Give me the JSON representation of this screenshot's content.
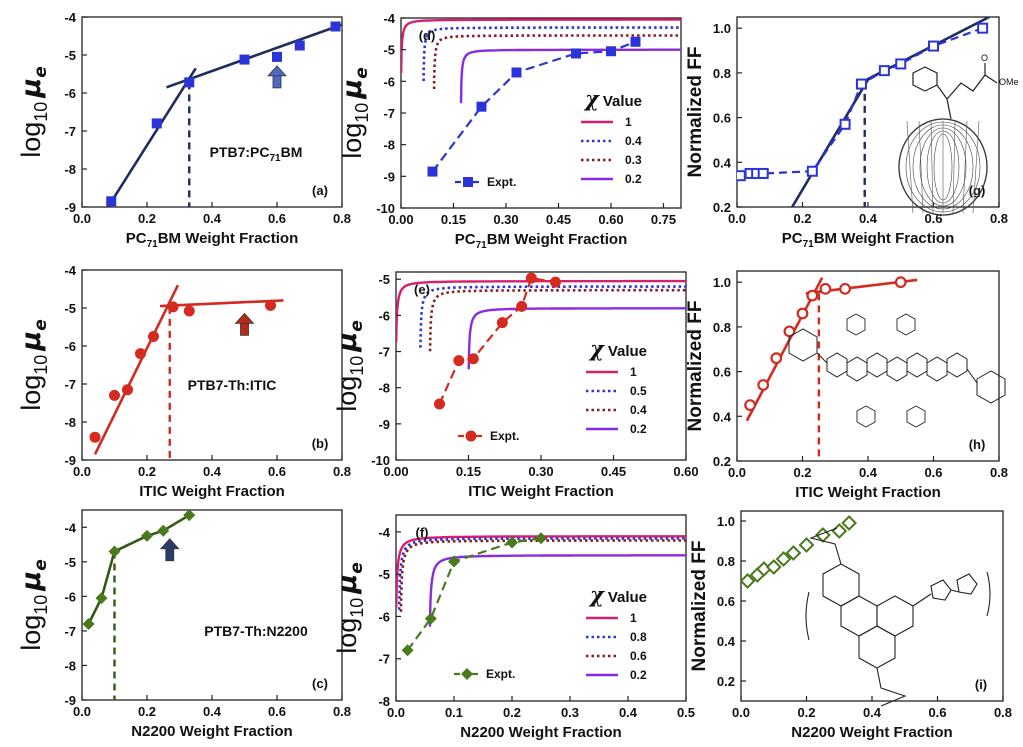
{
  "figure": {
    "ylabel_log": "log10 μe",
    "ylabel_ff": "Normalized FF",
    "xlabel_pcbm": "PC71BM Weight Fraction",
    "xlabel_itic": "ITIC Weight Fraction",
    "xlabel_n2200": "N2200 Weight Fraction",
    "legend_title": "χ Value",
    "legend_expt": "Expt."
  },
  "colors": {
    "navy": "#1f2d5c",
    "blue": "#2a34d8",
    "red": "#d42a20",
    "green": "#4a7a1e",
    "magenta": "#d6206f",
    "maroon": "#8a1c1c",
    "violet": "#8a2be2",
    "arrow_blue": "#4e68c4",
    "arrow_red": "#b52a18",
    "arrow_navy": "#2b3d6a"
  },
  "chart_data": [
    {
      "id": "a",
      "type": "scatter",
      "tag": "(a)",
      "annotation": "PTB7:PC71BM",
      "xlabel": "PC71BM Weight Fraction",
      "ylabel": "log10 μe",
      "xlim": [
        0,
        0.8
      ],
      "ylim": [
        -9,
        -4
      ],
      "xticks": [
        "0.0",
        "0.2",
        "0.4",
        "0.6",
        "0.8"
      ],
      "yticks": [
        "-9",
        "-8",
        "-7",
        "-6",
        "-5",
        "-4"
      ],
      "series": [
        {
          "x": [
            0.09,
            0.23,
            0.33,
            0.5,
            0.6,
            0.67,
            0.78
          ],
          "y": [
            -8.85,
            -6.8,
            -5.72,
            -5.12,
            -5.05,
            -4.75,
            -4.25
          ]
        }
      ],
      "fit_lines": [
        {
          "x": [
            0.08,
            0.35
          ],
          "y": [
            -9.0,
            -5.35
          ]
        },
        {
          "x": [
            0.26,
            0.8
          ],
          "y": [
            -5.85,
            -4.2
          ]
        }
      ],
      "threshold_x": 0.33,
      "arrow_x": 0.6
    },
    {
      "id": "b",
      "type": "scatter",
      "tag": "(b)",
      "annotation": "PTB7-Th:ITIC",
      "xlabel": "ITIC Weight Fraction",
      "ylabel": "log10 μe",
      "xlim": [
        0,
        0.8
      ],
      "ylim": [
        -9,
        -4
      ],
      "xticks": [
        "0.0",
        "0.2",
        "0.4",
        "0.6",
        "0.8"
      ],
      "yticks": [
        "-9",
        "-8",
        "-7",
        "-6",
        "-5",
        "-4"
      ],
      "series": [
        {
          "x": [
            0.04,
            0.1,
            0.14,
            0.18,
            0.22,
            0.28,
            0.33,
            0.58
          ],
          "y": [
            -8.4,
            -7.3,
            -7.15,
            -6.2,
            -5.75,
            -4.97,
            -5.08,
            -4.93
          ]
        }
      ],
      "fit_lines": [
        {
          "x": [
            0.04,
            0.295
          ],
          "y": [
            -8.85,
            -4.4
          ]
        },
        {
          "x": [
            0.24,
            0.62
          ],
          "y": [
            -4.95,
            -4.8
          ]
        }
      ],
      "threshold_x": 0.27,
      "arrow_x": 0.5
    },
    {
      "id": "c",
      "type": "scatter",
      "tag": "(c)",
      "annotation": "PTB7-Th:N2200",
      "xlabel": "N2200 Weight Fraction",
      "ylabel": "log10 μe",
      "xlim": [
        0,
        0.8
      ],
      "ylim": [
        -9,
        -3.5
      ],
      "xticks": [
        "0.0",
        "0.2",
        "0.4",
        "0.6",
        "0.8"
      ],
      "yticks": [
        "-9",
        "-8",
        "-7",
        "-6",
        "-5",
        "-4"
      ],
      "series": [
        {
          "x": [
            0.02,
            0.06,
            0.1,
            0.2,
            0.25,
            0.33
          ],
          "y": [
            -6.8,
            -6.05,
            -4.7,
            -4.25,
            -4.1,
            -3.65
          ]
        }
      ],
      "fit_lines": [],
      "threshold_x": 0.1,
      "arrow_x": 0.27
    },
    {
      "id": "d",
      "type": "line",
      "tag": "(d)",
      "xlabel": "PC71BM Weight Fraction",
      "ylabel": "log10 μe",
      "xlim": [
        0,
        0.8
      ],
      "ylim": [
        -10,
        -4
      ],
      "xticks": [
        "0.00",
        "0.15",
        "0.30",
        "0.45",
        "0.60",
        "0.75"
      ],
      "yticks": [
        "-10",
        "-9",
        "-8",
        "-7",
        "-6",
        "-5",
        "-4"
      ],
      "legend_title": "χ Value",
      "series": [
        {
          "name": "1",
          "x0": 0.0
        },
        {
          "name": "0.4",
          "x0": 0.064
        },
        {
          "name": "0.3",
          "x0": 0.094
        },
        {
          "name": "0.2",
          "x0": 0.171
        }
      ],
      "expt": {
        "name": "Expt.",
        "x": [
          0.09,
          0.23,
          0.33,
          0.5,
          0.6,
          0.67
        ],
        "y": [
          -8.85,
          -6.8,
          -5.72,
          -5.12,
          -5.05,
          -4.75
        ]
      }
    },
    {
      "id": "e",
      "type": "line",
      "tag": "(e)",
      "xlabel": "ITIC Weight Fraction",
      "ylabel": "log10 μe",
      "xlim": [
        0,
        0.6
      ],
      "ylim": [
        -10,
        -4.8
      ],
      "xticks": [
        "0.00",
        "0.15",
        "0.30",
        "0.45",
        "0.60"
      ],
      "yticks": [
        "-10",
        "-9",
        "-8",
        "-7",
        "-6",
        "-5"
      ],
      "legend_title": "χ Value",
      "series": [
        {
          "name": "1",
          "x0": 0.0
        },
        {
          "name": "0.5",
          "x0": 0.05
        },
        {
          "name": "0.4",
          "x0": 0.07
        },
        {
          "name": "0.2",
          "x0": 0.15
        }
      ],
      "expt": {
        "name": "Expt.",
        "x": [
          0.09,
          0.13,
          0.16,
          0.22,
          0.26,
          0.28,
          0.33
        ],
        "y": [
          -8.45,
          -7.25,
          -7.2,
          -6.2,
          -5.75,
          -4.97,
          -5.08
        ]
      }
    },
    {
      "id": "f",
      "type": "line",
      "tag": "(f)",
      "xlabel": "N2200 Weight Fraction",
      "ylabel": "log10 μe",
      "xlim": [
        0,
        0.5
      ],
      "ylim": [
        -8,
        -3.6
      ],
      "xticks": [
        "0.0",
        "0.1",
        "0.2",
        "0.3",
        "0.4",
        "0.5"
      ],
      "yticks": [
        "-8",
        "-7",
        "-6",
        "-5",
        "-4"
      ],
      "legend_title": "χ Value",
      "series": [
        {
          "name": "1",
          "x0": 0.0
        },
        {
          "name": "0.8",
          "x0": 0.005
        },
        {
          "name": "0.6",
          "x0": 0.008
        },
        {
          "name": "0.2",
          "x0": 0.058
        }
      ],
      "expt": {
        "name": "Expt.",
        "x": [
          0.02,
          0.06,
          0.1,
          0.2,
          0.25
        ],
        "y": [
          -6.8,
          -6.05,
          -4.7,
          -4.25,
          -4.15
        ]
      }
    },
    {
      "id": "g",
      "type": "scatter",
      "tag": "(g)",
      "xlabel": "PC71BM Weight Fraction",
      "ylabel": "Normalized FF",
      "xlim": [
        0,
        0.8
      ],
      "ylim": [
        0.2,
        1.05
      ],
      "xticks": [
        "0.0",
        "0.2",
        "0.4",
        "0.6",
        "0.8"
      ],
      "yticks": [
        "0.2",
        "0.4",
        "0.6",
        "0.8",
        "1.0"
      ],
      "series": [
        {
          "x": [
            0.01,
            0.04,
            0.06,
            0.08,
            0.23,
            0.33,
            0.38,
            0.45,
            0.5,
            0.6,
            0.75
          ],
          "y": [
            0.34,
            0.35,
            0.35,
            0.35,
            0.36,
            0.57,
            0.75,
            0.81,
            0.84,
            0.92,
            1.0
          ]
        }
      ],
      "fit_lines": [
        {
          "x": [
            0.14,
            0.4
          ],
          "y": [
            0.13,
            0.77
          ]
        },
        {
          "x": [
            0.37,
            0.77
          ],
          "y": [
            0.75,
            1.05
          ]
        }
      ],
      "threshold_x": 0.39
    },
    {
      "id": "h",
      "type": "scatter",
      "tag": "(h)",
      "xlabel": "ITIC Weight Fraction",
      "ylabel": "Normalized FF",
      "xlim": [
        0,
        0.8
      ],
      "ylim": [
        0.2,
        1.05
      ],
      "xticks": [
        "0.0",
        "0.2",
        "0.4",
        "0.6",
        "0.8"
      ],
      "yticks": [
        "0.2",
        "0.4",
        "0.6",
        "0.8",
        "1.0"
      ],
      "series": [
        {
          "x": [
            0.04,
            0.08,
            0.12,
            0.16,
            0.2,
            0.23,
            0.27,
            0.33,
            0.5
          ],
          "y": [
            0.45,
            0.54,
            0.66,
            0.78,
            0.86,
            0.94,
            0.97,
            0.97,
            1.0
          ]
        }
      ],
      "fit_lines": [
        {
          "x": [
            0.03,
            0.26
          ],
          "y": [
            0.38,
            1.02
          ]
        },
        {
          "x": [
            0.21,
            0.55
          ],
          "y": [
            0.95,
            1.01
          ]
        }
      ],
      "threshold_x": 0.25
    },
    {
      "id": "i",
      "type": "scatter",
      "tag": "(i)",
      "xlabel": "N2200 Weight Fraction",
      "ylabel": "Normalized FF",
      "xlim": [
        0,
        0.8
      ],
      "ylim": [
        0.1,
        1.05
      ],
      "xticks": [
        "0.0",
        "0.2",
        "0.4",
        "0.6",
        "0.8"
      ],
      "yticks": [
        "0.2",
        "0.4",
        "0.6",
        "0.8",
        "1.0"
      ],
      "series": [
        {
          "x": [
            0.02,
            0.05,
            0.07,
            0.1,
            0.13,
            0.16,
            0.2,
            0.25,
            0.3,
            0.33
          ],
          "y": [
            0.7,
            0.73,
            0.76,
            0.77,
            0.81,
            0.84,
            0.88,
            0.93,
            0.95,
            0.99
          ]
        }
      ],
      "fit_lines": [],
      "threshold_x": null
    }
  ]
}
